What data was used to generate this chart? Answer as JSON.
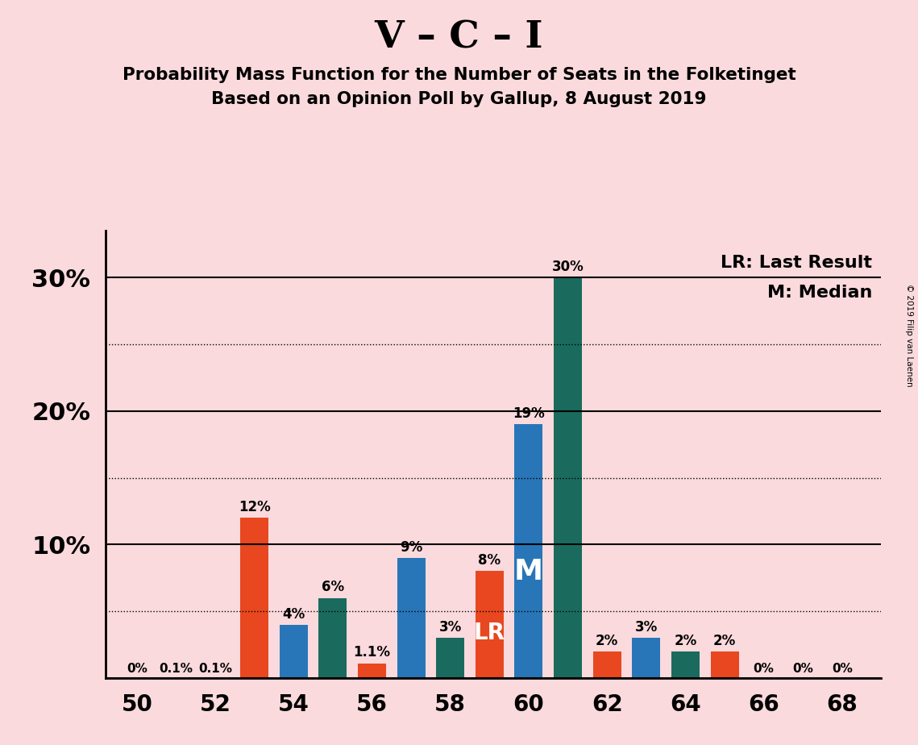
{
  "title": "V – C – I",
  "subtitle1": "Probability Mass Function for the Number of Seats in the Folketinget",
  "subtitle2": "Based on an Opinion Poll by Gallup, 8 August 2019",
  "copyright": "© 2019 Filip van Laenen",
  "legend_lr": "LR: Last Result",
  "legend_m": "M: Median",
  "background_color": "#fadadd",
  "bar_color_blue": "#2876b8",
  "bar_color_orange": "#e8471f",
  "bar_color_teal": "#1a6b5e",
  "bar_width": 0.72,
  "bar_data": [
    {
      "x": 53,
      "color": "orange",
      "value": 0.12,
      "top_label": "12%",
      "inside_label": ""
    },
    {
      "x": 54,
      "color": "blue",
      "value": 0.04,
      "top_label": "4%",
      "inside_label": ""
    },
    {
      "x": 55,
      "color": "teal",
      "value": 0.06,
      "top_label": "6%",
      "inside_label": ""
    },
    {
      "x": 56,
      "color": "orange",
      "value": 0.011,
      "top_label": "1.1%",
      "inside_label": ""
    },
    {
      "x": 57,
      "color": "blue",
      "value": 0.09,
      "top_label": "9%",
      "inside_label": ""
    },
    {
      "x": 58,
      "color": "teal",
      "value": 0.03,
      "top_label": "3%",
      "inside_label": ""
    },
    {
      "x": 59,
      "color": "orange",
      "value": 0.08,
      "top_label": "8%",
      "inside_label": "LR"
    },
    {
      "x": 60,
      "color": "blue",
      "value": 0.19,
      "top_label": "19%",
      "inside_label": "M"
    },
    {
      "x": 61,
      "color": "teal",
      "value": 0.3,
      "top_label": "30%",
      "inside_label": ""
    },
    {
      "x": 62,
      "color": "orange",
      "value": 0.02,
      "top_label": "2%",
      "inside_label": ""
    },
    {
      "x": 63,
      "color": "blue",
      "value": 0.03,
      "top_label": "3%",
      "inside_label": ""
    },
    {
      "x": 64,
      "color": "teal",
      "value": 0.02,
      "top_label": "2%",
      "inside_label": ""
    },
    {
      "x": 65,
      "color": "orange",
      "value": 0.02,
      "top_label": "2%",
      "inside_label": ""
    }
  ],
  "small_labels": [
    {
      "x": 50,
      "text": "0%"
    },
    {
      "x": 51,
      "text": "0.1%"
    },
    {
      "x": 52,
      "text": "0.1%"
    },
    {
      "x": 66,
      "text": "0%"
    },
    {
      "x": 67,
      "text": "0%"
    },
    {
      "x": 68,
      "text": "0%"
    }
  ],
  "solid_hlines": [
    0.0,
    0.1,
    0.2,
    0.3
  ],
  "dotted_hlines": [
    0.05,
    0.15,
    0.25
  ],
  "ytick_positions": [
    0.1,
    0.2,
    0.3
  ],
  "ytick_labels": [
    "10%",
    "20%",
    "30%"
  ],
  "xtick_positions": [
    50,
    52,
    54,
    56,
    58,
    60,
    62,
    64,
    66,
    68
  ],
  "xlim": [
    49.2,
    69.0
  ],
  "ylim": [
    0.0,
    0.335
  ]
}
